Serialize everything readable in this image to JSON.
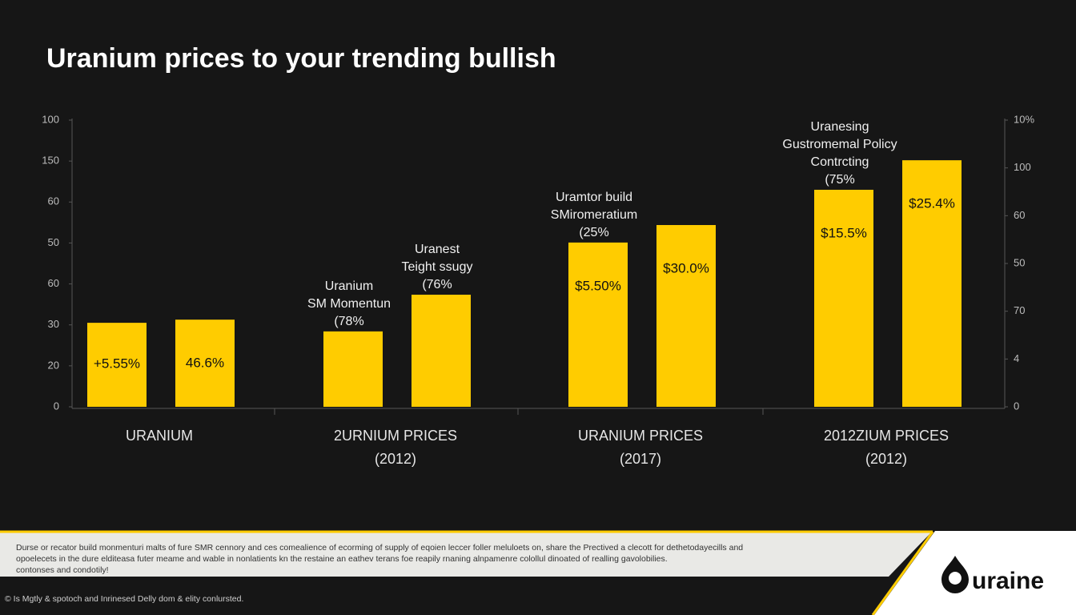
{
  "chart_data": {
    "type": "bar",
    "title": "Uranium prices to your trending bullish",
    "ylim": [
      0,
      100
    ],
    "y_axis_labels": [
      "100",
      "150",
      "60",
      "50",
      "60",
      "30",
      "20",
      "0"
    ],
    "y2_axis_labels": [
      "10%",
      "100",
      "60",
      "50",
      "70",
      "4",
      "0"
    ],
    "categories": [
      "URANIUM",
      "2URNIUM PRICES",
      "URANIUM PRICES",
      "2012ZIUM PRICES"
    ],
    "category_sublabels": [
      null,
      "(2012)",
      "(2017)",
      "(2012)"
    ],
    "series": [
      {
        "color": "#ffcc00",
        "values": [
          29.3,
          26.3,
          57.3,
          75.7
        ],
        "value_labels": [
          "+5.55%",
          null,
          "$5.50%",
          "$15.5%"
        ],
        "notes": [
          null,
          [
            "Uranium",
            "SM Momentun",
            "(78%"
          ],
          [
            "Uramtor build",
            "SMiromeratium",
            "(25%"
          ],
          [
            "Uranesing",
            "Gustromemal Policy",
            "Contrcting",
            "(75%"
          ]
        ]
      },
      {
        "color": "#ffcc00",
        "values": [
          30.4,
          39.1,
          63.4,
          86.0
        ],
        "value_labels": [
          "46.6%",
          null,
          "$30.0%",
          "$25.4%"
        ],
        "notes": [
          null,
          [
            "Uranest",
            "Teight ssugy",
            "(76%"
          ],
          null,
          null
        ]
      }
    ]
  },
  "footer": {
    "lines": [
      "Durse or recator build monmenturi malts of fure SMR cennory and ces comealience of ecorming of supply of eqoien leccer foller meluloets on, share the Prectived a clecott for dethetodayecills and",
      "opoelecets in the dure elditeasa futer meame and wable in nonlatients kn the restaine an eathev terans foe reapily rnaning alnpamenre colollul dinoated of realling gavolobilies.",
      "contonses and condotily!"
    ],
    "note": "© Is Mgtly & spotoch and Inrinesed Delly dom & elity conlursted.",
    "logo": "uraine"
  }
}
